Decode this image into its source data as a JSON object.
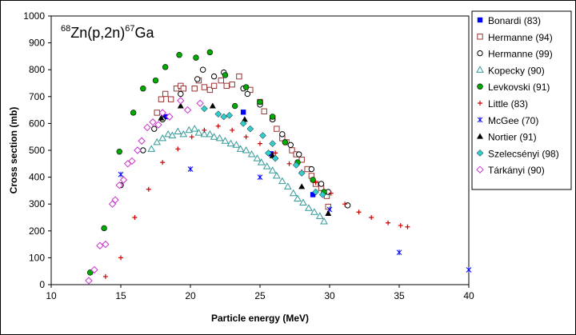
{
  "chart_data": {
    "type": "scatter",
    "title": {
      "mass_in": "68",
      "elem_in": "Zn",
      "reaction": "(p,2n)",
      "mass_out": "67",
      "elem_out": "Ga"
    },
    "xlabel": "Particle energy (MeV)",
    "ylabel": "Cross section (mb)",
    "xlim": [
      10,
      40
    ],
    "ylim": [
      0,
      1000
    ],
    "x_ticks": [
      "10",
      "15",
      "20",
      "25",
      "30",
      "35",
      "40"
    ],
    "y_ticks": [
      "0",
      "100",
      "200",
      "300",
      "400",
      "500",
      "600",
      "700",
      "800",
      "900",
      "1000"
    ],
    "grid": false,
    "legend_position": "right",
    "series": [
      {
        "name": "Bonardi (83)",
        "marker": "filled-square",
        "color": "#0000ff",
        "points": [
          [
            18.2,
            625
          ],
          [
            23.8,
            642
          ],
          [
            25.8,
            487
          ],
          [
            28.8,
            335
          ]
        ]
      },
      {
        "name": "Hermanne (94)",
        "marker": "open-square",
        "color": "#993333",
        "points": [
          [
            17.6,
            640
          ],
          [
            17.9,
            690
          ],
          [
            18.2,
            710
          ],
          [
            18.6,
            690
          ],
          [
            19.0,
            730
          ],
          [
            19.3,
            740
          ],
          [
            19.5,
            730
          ],
          [
            20.3,
            730
          ],
          [
            20.6,
            760
          ],
          [
            21.0,
            735
          ],
          [
            21.4,
            725
          ],
          [
            21.7,
            740
          ],
          [
            22.2,
            760
          ],
          [
            22.6,
            740
          ],
          [
            23.0,
            745
          ],
          [
            23.5,
            775
          ],
          [
            24.3,
            725
          ],
          [
            25.0,
            680
          ],
          [
            25.3,
            645
          ],
          [
            25.9,
            620
          ],
          [
            26.2,
            580
          ],
          [
            26.6,
            545
          ],
          [
            26.9,
            530
          ],
          [
            27.3,
            500
          ],
          [
            27.6,
            485
          ],
          [
            28.0,
            465
          ],
          [
            28.4,
            430
          ],
          [
            28.7,
            405
          ],
          [
            29.0,
            375
          ],
          [
            29.4,
            360
          ],
          [
            29.8,
            330
          ],
          [
            29.9,
            290
          ]
        ]
      },
      {
        "name": "Hermanne (99)",
        "marker": "open-circle",
        "color": "#000000",
        "points": [
          [
            15.0,
            370
          ],
          [
            16.6,
            500
          ],
          [
            17.4,
            580
          ],
          [
            18.0,
            615
          ],
          [
            19.3,
            710
          ],
          [
            20.5,
            765
          ],
          [
            20.9,
            800
          ],
          [
            21.7,
            775
          ],
          [
            22.4,
            790
          ],
          [
            23.8,
            730
          ],
          [
            24.1,
            710
          ],
          [
            25.0,
            670
          ],
          [
            25.9,
            615
          ],
          [
            26.6,
            560
          ],
          [
            27.2,
            520
          ],
          [
            27.8,
            485
          ],
          [
            28.7,
            430
          ],
          [
            29.4,
            375
          ],
          [
            29.9,
            345
          ],
          [
            31.3,
            295
          ]
        ]
      },
      {
        "name": "Kopecky (90)",
        "marker": "open-triangle",
        "color": "#339999",
        "points": [
          [
            17.2,
            505
          ],
          [
            17.6,
            530
          ],
          [
            18.0,
            545
          ],
          [
            18.4,
            560
          ],
          [
            18.7,
            555
          ],
          [
            19.1,
            570
          ],
          [
            19.5,
            560
          ],
          [
            19.9,
            575
          ],
          [
            20.3,
            580
          ],
          [
            20.6,
            565
          ],
          [
            21.0,
            560
          ],
          [
            21.4,
            560
          ],
          [
            21.7,
            550
          ],
          [
            22.1,
            545
          ],
          [
            22.5,
            535
          ],
          [
            22.9,
            525
          ],
          [
            23.3,
            520
          ],
          [
            23.6,
            505
          ],
          [
            24.0,
            500
          ],
          [
            24.4,
            485
          ],
          [
            24.8,
            470
          ],
          [
            25.1,
            455
          ],
          [
            25.5,
            440
          ],
          [
            25.9,
            425
          ],
          [
            26.2,
            405
          ],
          [
            26.6,
            385
          ],
          [
            27.0,
            365
          ],
          [
            27.4,
            340
          ],
          [
            27.7,
            320
          ],
          [
            28.1,
            305
          ],
          [
            28.5,
            285
          ],
          [
            28.9,
            270
          ],
          [
            29.3,
            255
          ],
          [
            29.6,
            235
          ]
        ]
      },
      {
        "name": "Levkovski (91)",
        "marker": "filled-circle",
        "color": "#00aa00",
        "points": [
          [
            12.8,
            45
          ],
          [
            13.8,
            210
          ],
          [
            14.9,
            495
          ],
          [
            15.9,
            640
          ],
          [
            16.6,
            730
          ],
          [
            17.5,
            760
          ],
          [
            18.2,
            810
          ],
          [
            19.2,
            855
          ],
          [
            20.4,
            845
          ],
          [
            21.4,
            865
          ],
          [
            22.5,
            780
          ],
          [
            23.2,
            665
          ],
          [
            24.0,
            735
          ],
          [
            25.0,
            680
          ],
          [
            25.9,
            625
          ],
          [
            26.8,
            530
          ],
          [
            27.7,
            455
          ],
          [
            28.8,
            390
          ],
          [
            29.6,
            345
          ]
        ]
      },
      {
        "name": "Little (83)",
        "marker": "plus",
        "color": "#cc0000",
        "points": [
          [
            13.9,
            30
          ],
          [
            15.0,
            100
          ],
          [
            16.0,
            250
          ],
          [
            17.0,
            355
          ],
          [
            18.0,
            455
          ],
          [
            19.1,
            505
          ],
          [
            20.1,
            550
          ],
          [
            21.0,
            575
          ],
          [
            22.0,
            590
          ],
          [
            23.0,
            575
          ],
          [
            24.0,
            550
          ],
          [
            25.0,
            525
          ],
          [
            26.1,
            490
          ],
          [
            27.1,
            450
          ],
          [
            28.0,
            420
          ],
          [
            29.0,
            380
          ],
          [
            30.1,
            340
          ],
          [
            31.1,
            300
          ],
          [
            32.1,
            270
          ],
          [
            33.0,
            250
          ],
          [
            34.2,
            230
          ],
          [
            35.1,
            220
          ],
          [
            35.6,
            215
          ]
        ]
      },
      {
        "name": "McGee (70)",
        "marker": "star",
        "color": "#0000ff",
        "points": [
          [
            15.0,
            410
          ],
          [
            20.0,
            430
          ],
          [
            25.0,
            400
          ],
          [
            30.0,
            280
          ],
          [
            35.0,
            120
          ],
          [
            40.0,
            55
          ]
        ]
      },
      {
        "name": "Nortier (91)",
        "marker": "filled-triangle",
        "color": "#000000",
        "points": [
          [
            17.9,
            620
          ],
          [
            19.3,
            665
          ],
          [
            21.6,
            665
          ],
          [
            23.9,
            615
          ],
          [
            25.9,
            480
          ],
          [
            28.0,
            365
          ],
          [
            29.9,
            265
          ]
        ]
      },
      {
        "name": "Szelecsényi (98)",
        "marker": "filled-diamond",
        "color": "#33cccc",
        "points": [
          [
            21.0,
            655
          ],
          [
            22.0,
            635
          ],
          [
            22.4,
            625
          ],
          [
            22.8,
            630
          ],
          [
            23.8,
            600
          ],
          [
            24.3,
            580
          ],
          [
            25.2,
            555
          ],
          [
            25.9,
            525
          ],
          [
            25.6,
            490
          ],
          [
            26.1,
            470
          ],
          [
            27.6,
            445
          ],
          [
            28.0,
            415
          ],
          [
            29.0,
            345
          ],
          [
            29.5,
            335
          ]
        ]
      },
      {
        "name": "Tárkányi (90)",
        "marker": "open-diamond",
        "color": "#cc33cc",
        "points": [
          [
            12.7,
            15
          ],
          [
            13.1,
            55
          ],
          [
            13.5,
            145
          ],
          [
            13.9,
            150
          ],
          [
            14.4,
            300
          ],
          [
            14.6,
            315
          ],
          [
            14.9,
            370
          ],
          [
            15.2,
            390
          ],
          [
            15.5,
            450
          ],
          [
            15.8,
            460
          ],
          [
            16.2,
            500
          ],
          [
            16.5,
            535
          ],
          [
            16.9,
            585
          ],
          [
            17.3,
            605
          ],
          [
            17.7,
            595
          ],
          [
            18.0,
            640
          ],
          [
            18.5,
            625
          ],
          [
            19.3,
            685
          ],
          [
            19.8,
            650
          ],
          [
            20.7,
            675
          ]
        ]
      }
    ]
  }
}
